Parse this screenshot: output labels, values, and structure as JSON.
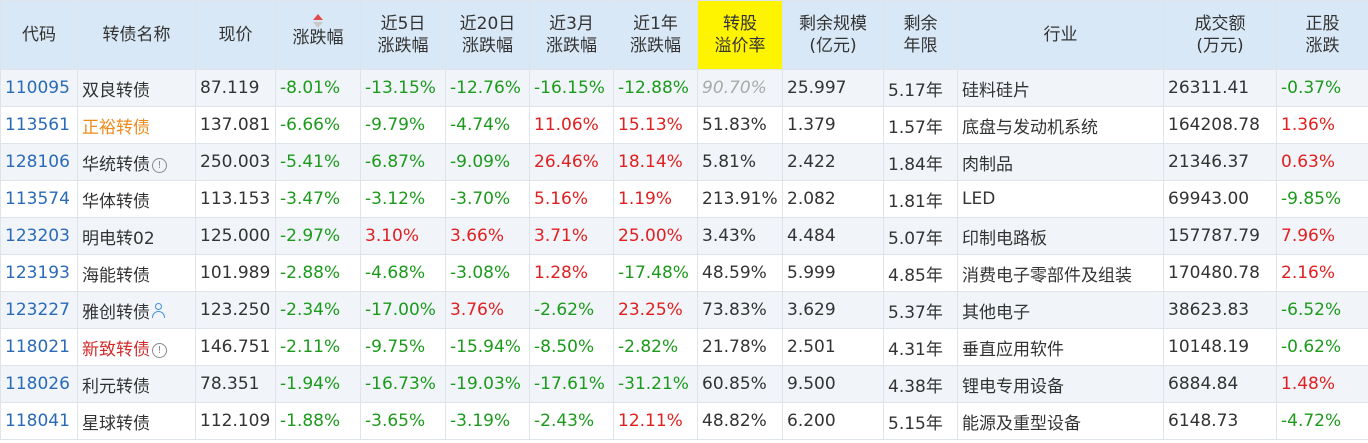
{
  "colors": {
    "header_bg": "#d8e8f6",
    "highlight_header_bg": "#fff400",
    "code_blue": "#2a6ab7",
    "rise_red": "#e02020",
    "fall_green": "#1c9a1c"
  },
  "headers": {
    "code": [
      "代码"
    ],
    "name": [
      "转债名称"
    ],
    "price": [
      "现价"
    ],
    "change": [
      "涨跌幅"
    ],
    "chg5d": [
      "近5日",
      "涨跌幅"
    ],
    "chg20d": [
      "近20日",
      "涨跌幅"
    ],
    "chg3m": [
      "近3月",
      "涨跌幅"
    ],
    "chg1y": [
      "近1年",
      "涨跌幅"
    ],
    "premium": [
      "转股",
      "溢价率"
    ],
    "scale": [
      "剩余规模",
      "(亿元)"
    ],
    "years": [
      "剩余",
      "年限"
    ],
    "industry": [
      "行业"
    ],
    "volume": [
      "成交额",
      "(万元)"
    ],
    "stock_chg": [
      "正股",
      "涨跌"
    ]
  },
  "sort": {
    "column": "change",
    "direction": "asc",
    "icon": "sort-arrows-icon"
  },
  "rows": [
    {
      "code": "110095",
      "name": "双良转债",
      "name_style": "normal",
      "name_icon": "",
      "price": "87.119",
      "change": "-8.01%",
      "chg5d": "-13.15%",
      "chg20d": "-12.76%",
      "chg3m": "-16.15%",
      "chg1y": "-12.88%",
      "premium": "90.70%",
      "premium_style": "muted",
      "scale": "25.997",
      "years": "5.17年",
      "industry": "硅料硅片",
      "volume": "26311.41",
      "stock_chg": "-0.37%"
    },
    {
      "code": "113561",
      "name": "正裕转债",
      "name_style": "orange",
      "name_icon": "",
      "price": "137.081",
      "change": "-6.66%",
      "chg5d": "-9.79%",
      "chg20d": "-4.74%",
      "chg3m": "11.06%",
      "chg1y": "15.13%",
      "premium": "51.83%",
      "premium_style": "normal",
      "scale": "1.379",
      "years": "1.57年",
      "industry": "底盘与发动机系统",
      "volume": "164208.78",
      "stock_chg": "1.36%"
    },
    {
      "code": "128106",
      "name": "华统转债",
      "name_style": "normal",
      "name_icon": "info-icon",
      "price": "250.003",
      "change": "-5.41%",
      "chg5d": "-6.87%",
      "chg20d": "-9.09%",
      "chg3m": "26.46%",
      "chg1y": "18.14%",
      "premium": "5.81%",
      "premium_style": "normal",
      "scale": "2.422",
      "years": "1.84年",
      "industry": "肉制品",
      "volume": "21346.37",
      "stock_chg": "0.63%"
    },
    {
      "code": "113574",
      "name": "华体转债",
      "name_style": "normal",
      "name_icon": "",
      "price": "113.153",
      "change": "-3.47%",
      "chg5d": "-3.12%",
      "chg20d": "-3.70%",
      "chg3m": "5.16%",
      "chg1y": "1.19%",
      "premium": "213.91%",
      "premium_style": "normal",
      "scale": "2.082",
      "years": "1.81年",
      "industry": "LED",
      "volume": "69943.00",
      "stock_chg": "-9.85%"
    },
    {
      "code": "123203",
      "name": "明电转02",
      "name_style": "normal",
      "name_icon": "",
      "price": "125.000",
      "change": "-2.97%",
      "chg5d": "3.10%",
      "chg20d": "3.66%",
      "chg3m": "3.71%",
      "chg1y": "25.00%",
      "premium": "3.43%",
      "premium_style": "normal",
      "scale": "4.484",
      "years": "5.07年",
      "industry": "印制电路板",
      "volume": "157787.79",
      "stock_chg": "7.96%"
    },
    {
      "code": "123193",
      "name": "海能转债",
      "name_style": "normal",
      "name_icon": "",
      "price": "101.989",
      "change": "-2.88%",
      "chg5d": "-4.68%",
      "chg20d": "-3.08%",
      "chg3m": "1.28%",
      "chg1y": "-17.48%",
      "premium": "48.59%",
      "premium_style": "normal",
      "scale": "5.999",
      "years": "4.85年",
      "industry": "消费电子零部件及组装",
      "volume": "170480.78",
      "stock_chg": "2.16%"
    },
    {
      "code": "123227",
      "name": "雅创转债",
      "name_style": "normal",
      "name_icon": "person-icon",
      "price": "123.250",
      "change": "-2.34%",
      "chg5d": "-17.00%",
      "chg20d": "3.76%",
      "chg3m": "-2.62%",
      "chg1y": "23.25%",
      "premium": "73.83%",
      "premium_style": "normal",
      "scale": "3.629",
      "years": "5.37年",
      "industry": "其他电子",
      "volume": "38623.83",
      "stock_chg": "-6.52%"
    },
    {
      "code": "118021",
      "name": "新致转债",
      "name_style": "red",
      "name_icon": "info-icon",
      "price": "146.751",
      "change": "-2.11%",
      "chg5d": "-9.75%",
      "chg20d": "-15.94%",
      "chg3m": "-8.50%",
      "chg1y": "-2.82%",
      "premium": "21.78%",
      "premium_style": "normal",
      "scale": "2.501",
      "years": "4.31年",
      "industry": "垂直应用软件",
      "volume": "10148.19",
      "stock_chg": "-0.62%"
    },
    {
      "code": "118026",
      "name": "利元转债",
      "name_style": "normal",
      "name_icon": "",
      "price": "78.351",
      "change": "-1.94%",
      "chg5d": "-16.73%",
      "chg20d": "-19.03%",
      "chg3m": "-17.61%",
      "chg1y": "-31.21%",
      "premium": "60.85%",
      "premium_style": "normal",
      "scale": "9.500",
      "years": "4.38年",
      "industry": "锂电专用设备",
      "volume": "6884.84",
      "stock_chg": "1.48%"
    },
    {
      "code": "118041",
      "name": "星球转债",
      "name_style": "normal",
      "name_icon": "",
      "price": "112.109",
      "change": "-1.88%",
      "chg5d": "-3.65%",
      "chg20d": "-3.19%",
      "chg3m": "-2.43%",
      "chg1y": "12.11%",
      "premium": "48.82%",
      "premium_style": "normal",
      "scale": "6.200",
      "years": "5.15年",
      "industry": "能源及重型设备",
      "volume": "6148.73",
      "stock_chg": "-4.72%"
    }
  ]
}
